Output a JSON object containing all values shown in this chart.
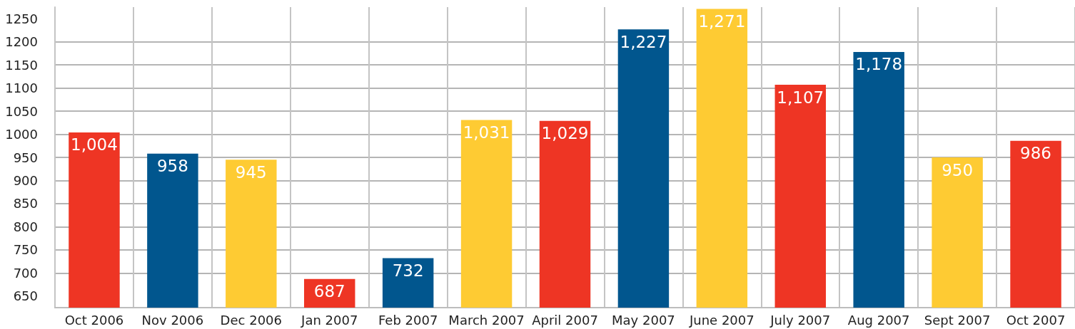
{
  "chart_data": {
    "type": "bar",
    "categories": [
      "Oct 2006",
      "Nov 2006",
      "Dec 2006",
      "Jan 2007",
      "Feb 2007",
      "March 2007",
      "April 2007",
      "May 2007",
      "June 2007",
      "July 2007",
      "Aug 2007",
      "Sept 2007",
      "Oct 2007"
    ],
    "values": [
      1004,
      958,
      945,
      687,
      732,
      1031,
      1029,
      1227,
      1271,
      1107,
      1178,
      950,
      986
    ],
    "colors": [
      "#ee3524",
      "#01568e",
      "#fecb33",
      "#ee3524",
      "#01568e",
      "#fecb33",
      "#ee3524",
      "#01568e",
      "#fecb33",
      "#ee3524",
      "#01568e",
      "#fecb33",
      "#ee3524"
    ],
    "value_labels": [
      "1,004",
      "958",
      "945",
      "687",
      "732",
      "1,031",
      "1,029",
      "1,227",
      "1,271",
      "1,107",
      "1,178",
      "950",
      "986"
    ],
    "ylim": [
      625,
      1275
    ],
    "yticks": [
      650,
      700,
      750,
      800,
      850,
      900,
      950,
      1000,
      1050,
      1100,
      1150,
      1200,
      1250
    ],
    "grid": true
  }
}
